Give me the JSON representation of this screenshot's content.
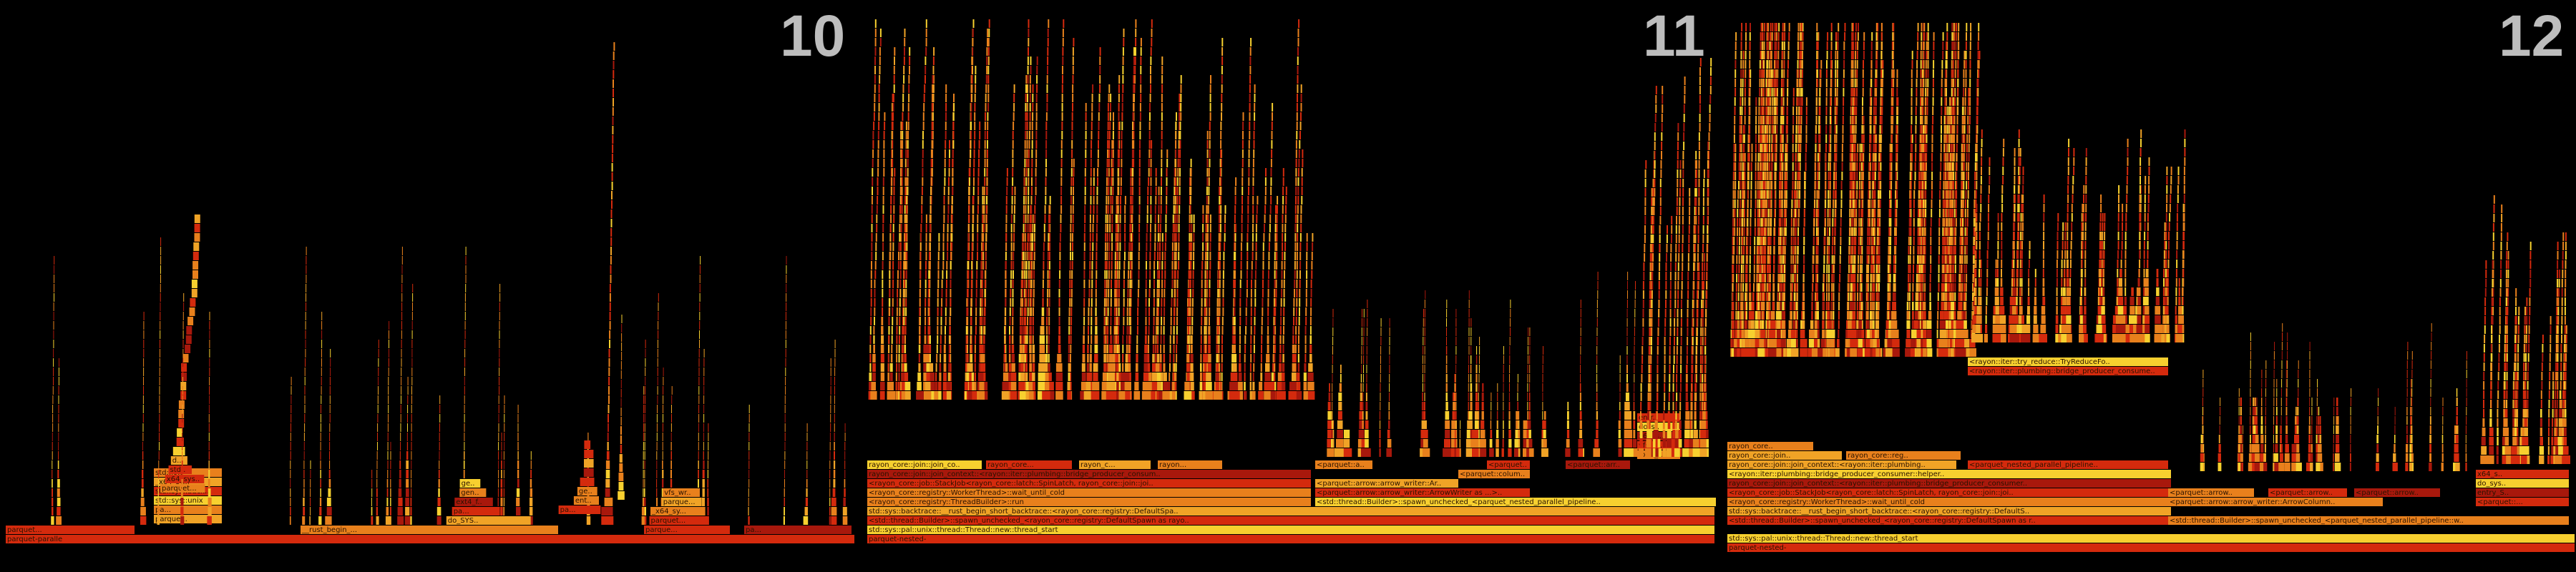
{
  "background": "#000000",
  "colors": {
    "red": "#d42a0d",
    "dark_red": "#a8180c",
    "orange": "#e8801c",
    "amber": "#f0a326",
    "yellow": "#f7d02f",
    "label_text": "#2a1200",
    "panel_number": "#bdbdbd"
  },
  "panels": [
    {
      "number": "10",
      "base_labels": [
        "parquet-paralle"
      ],
      "labels": [
        "__rust_begin_...",
        "parquet...",
        "parque...",
        "pa...",
        "std::sys::unix",
        "std::sys::backtr...",
        "_x64_sy...",
        "std::io::",
        "entry_SYS..",
        "do_SYS..",
        "x64_sys..",
        "mem_cg..",
        "ext4_file",
        "vfs_write",
        "generic..."
      ]
    },
    {
      "number": "11",
      "base_labels": [
        "parquet-nested-",
        "std::sys::pal::unix::thread::Thread::new::thread_start"
      ],
      "labels": [
        "<std::thread::Builder>::spawn_unchecked_<rayon_core::registry::DefaultSpawn as rayo..",
        "std::sys::backtrace::__rust_begin_short_backtrace::<rayon_core::registry::DefaultSpa..",
        "<rayon_core::registry::ThreadBuilder>::run",
        "<rayon_core::registry::WorkerThread>::wait_until_cold",
        "<rayon_core::job::StackJob<rayon_core::latch::SpinLatch, rayon_core::join::joi..",
        "rayon_core::join::join_context::<rayon::iter::plumbing::bridge_producer_consum..",
        "<std::thread::Builder>::spawn_unchecked_<parquet_nested_parallel_pipeline..",
        "<parquet::arrow::arrow_writer::ArrowWriter as ...>::write",
        "<parquet::arrow::arrow_writer::ArrowColum..",
        "<parquet::column::writer::GenericColumnWri..",
        "<parquet::arrow..",
        "<parquet:..",
        "<parquet::arrow..",
        "rayon_core::join::join_context::<...",
        "rayon_core...",
        "rayon_c...",
        "rayon...",
        "ext4_..",
        "vfs_w..",
        "x64_s..",
        "do_s..",
        "entr..",
        "std:.."
      ]
    },
    {
      "number": "12",
      "base_labels": [
        "parquet-nested-",
        "std::sys::pal::unix::thread::Thread::new::thread_start"
      ],
      "labels": [
        "<std::thread::Builder>::spawn_unchecked_<rayon_core::registry::DefaultSpawn as r..",
        "std::sys::backtrace::__rust_begin_short_backtrace::<rayon_core::registry::DefaultS..",
        "<std::thread::Builder>::spawn_unchecked_<parquet_nested_parallel_pipeline::w..",
        "<rayon_core::registry::WorkerThread>::wait_until_cold",
        "<rayon_core::job::StackJob<rayon_core::latch::SpinLatch, rayon_core::join::joi..",
        "rayon_core::join::join_context::<rayon::iter::plumbing::bridge_producer_consumer..",
        "<rayon::iter::plumbing::bridge_producer_consumer::helper..",
        "<parquet_nested_parallel_pipeline..",
        "<parquet::arrow::arrow_writer::ArrowColumn..",
        "<parquet::arrow..",
        "<parquet::arrow..",
        "<parquet::arrow..",
        "<rayon::iter::try_reduce::TryReduceFo..",
        "rayon_core::join..",
        "rayon_core::reg..",
        "rayon_core..",
        "<parquet::...",
        "entry_S..",
        "do_sys..",
        "x64_s.."
      ]
    }
  ]
}
